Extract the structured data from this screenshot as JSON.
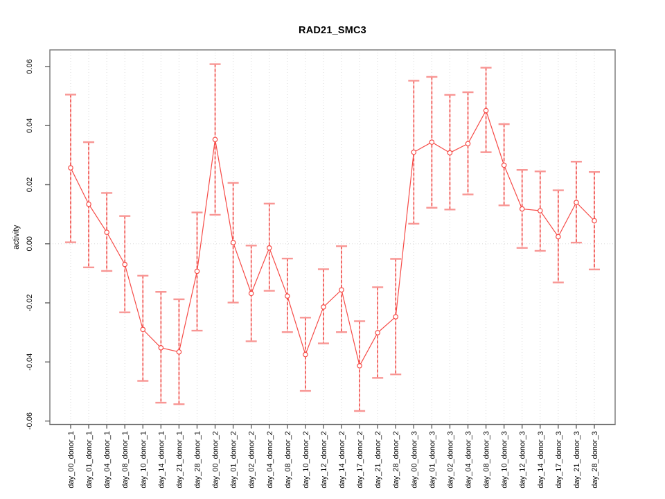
{
  "chart_data": {
    "type": "line",
    "title": "RAD21_SMC3",
    "xlabel": "",
    "ylabel": "activity",
    "ylim": [
      -0.06,
      0.06
    ],
    "yticks": [
      -0.06,
      -0.04,
      -0.02,
      0.0,
      0.02,
      0.04,
      0.06
    ],
    "ytick_labels": [
      "-0.06",
      "-0.04",
      "-0.02",
      "0.00",
      "0.02",
      "0.04",
      "0.06"
    ],
    "grid": "vertical dotted gridline at every category; dotted horizontal reference line at y=0",
    "legend": "none",
    "marker": "open-circle",
    "error_bars": "dashed vertical stems with horizontal caps",
    "categories": [
      "day_00_donor_1",
      "day_01_donor_1",
      "day_04_donor_1",
      "day_08_donor_1",
      "day_10_donor_1",
      "day_14_donor_1",
      "day_21_donor_1",
      "day_28_donor_1",
      "day_00_donor_2",
      "day_01_donor_2",
      "day_02_donor_2",
      "day_04_donor_2",
      "day_08_donor_2",
      "day_10_donor_2",
      "day_12_donor_2",
      "day_14_donor_2",
      "day_17_donor_2",
      "day_21_donor_2",
      "day_28_donor_2",
      "day_00_donor_3",
      "day_01_donor_3",
      "day_02_donor_3",
      "day_04_donor_3",
      "day_08_donor_3",
      "day_10_donor_3",
      "day_12_donor_3",
      "day_14_donor_3",
      "day_17_donor_3",
      "day_21_donor_3",
      "day_28_donor_3"
    ],
    "series": [
      {
        "name": "activity",
        "values": [
          0.0257,
          0.0134,
          0.0039,
          -0.007,
          -0.029,
          -0.0352,
          -0.0366,
          -0.0093,
          0.0353,
          0.0004,
          -0.0168,
          -0.0014,
          -0.0177,
          -0.0375,
          -0.0214,
          -0.0156,
          -0.0413,
          -0.0301,
          -0.0247,
          0.031,
          0.0344,
          0.0308,
          0.0339,
          0.0451,
          0.0266,
          0.0118,
          0.0112,
          0.0024,
          0.014,
          0.0078
        ],
        "err_low": [
          0.0005,
          -0.008,
          -0.0092,
          -0.0232,
          -0.0464,
          -0.0538,
          -0.0543,
          -0.0294,
          0.0098,
          -0.0199,
          -0.033,
          -0.0159,
          -0.0299,
          -0.0498,
          -0.0337,
          -0.0299,
          -0.0566,
          -0.0454,
          -0.0442,
          0.0068,
          0.0122,
          0.0116,
          0.0167,
          0.031,
          0.013,
          -0.0014,
          -0.0024,
          -0.0131,
          0.0004,
          -0.0087
        ],
        "err_high": [
          0.0505,
          0.0344,
          0.0172,
          0.0094,
          -0.0108,
          -0.0163,
          -0.0188,
          0.0106,
          0.0608,
          0.0206,
          -0.0006,
          0.0136,
          -0.005,
          -0.025,
          -0.0086,
          -0.0008,
          -0.0262,
          -0.0147,
          -0.0051,
          0.0552,
          0.0565,
          0.0504,
          0.0513,
          0.0596,
          0.0405,
          0.025,
          0.0245,
          0.0181,
          0.0278,
          0.0243
        ]
      }
    ],
    "colors": {
      "series_line": "#f64a46",
      "marker_stroke": "#f64a46",
      "marker_fill": "#ffffff",
      "errorbar_stem": "#ef4e4a",
      "errorbar_stem_underlay": "#fbb7b5",
      "errorbar_cap": "#f89694",
      "gridline": "#d8d8d8",
      "zero_line": "#d8d8d8",
      "frame": "#757575",
      "tick": "#606060",
      "text": "#0a0a0a"
    }
  }
}
